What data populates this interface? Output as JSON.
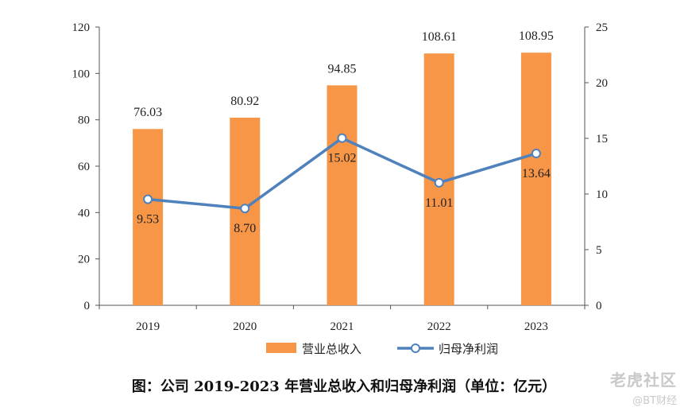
{
  "chart_data": {
    "type": "bar",
    "categories": [
      "2019",
      "2020",
      "2021",
      "2022",
      "2023"
    ],
    "series": [
      {
        "name": "营业总收入",
        "type": "bar",
        "axis": "left",
        "color": "#F79646",
        "values": [
          76.03,
          80.92,
          94.85,
          108.61,
          108.95
        ],
        "labels": [
          "76.03",
          "80.92",
          "94.85",
          "108.61",
          "108.95"
        ]
      },
      {
        "name": "归母净利润",
        "type": "line",
        "axis": "right",
        "color": "#4F81BD",
        "values": [
          9.53,
          8.7,
          15.02,
          11.01,
          13.64
        ],
        "labels": [
          "9.53",
          "8.70",
          "15.02",
          "11.01",
          "13.64"
        ]
      }
    ],
    "ylim_left": [
      0,
      120
    ],
    "yticks_left": [
      "0",
      "20",
      "40",
      "60",
      "80",
      "100",
      "120"
    ],
    "ylim_right": [
      0,
      25
    ],
    "yticks_right": [
      "0",
      "5",
      "10",
      "15",
      "20",
      "25"
    ],
    "grid": false,
    "legend": "bottom"
  },
  "caption": "图：公司 2019-2023 年营业总收入和归母净利润（单位：亿元）",
  "watermark": {
    "line1": "老虎社区",
    "line2": "@BT财经"
  }
}
